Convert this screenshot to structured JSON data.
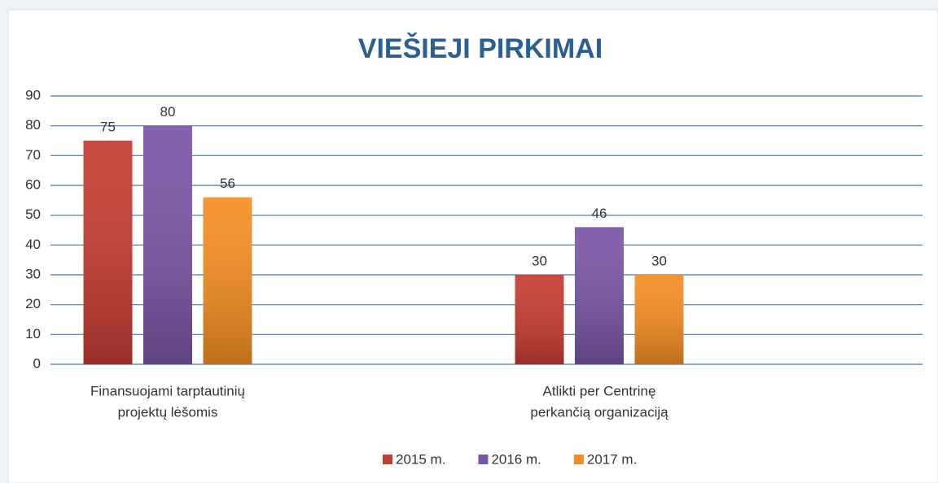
{
  "chart_data": {
    "type": "bar",
    "title": "VIEŠIEJI PIRKIMAI",
    "categories": [
      [
        "Finansuojami tarptautinių",
        "projektų lėšomis"
      ],
      [
        "Atlikti per Centrinę",
        "perkančią organizaciją"
      ]
    ],
    "series": [
      {
        "name": "2015 m.",
        "color": "#c63b32",
        "values": [
          75,
          30
        ]
      },
      {
        "name": "2016 m.",
        "color": "#7a55a6",
        "values": [
          80,
          46
        ]
      },
      {
        "name": "2017 m.",
        "color": "#f58d22",
        "values": [
          56,
          30
        ]
      }
    ],
    "ylim": [
      0,
      90
    ],
    "yticks": [
      0,
      10,
      20,
      30,
      40,
      50,
      60,
      70,
      80,
      90
    ],
    "grid": true,
    "legend": "bottom"
  }
}
